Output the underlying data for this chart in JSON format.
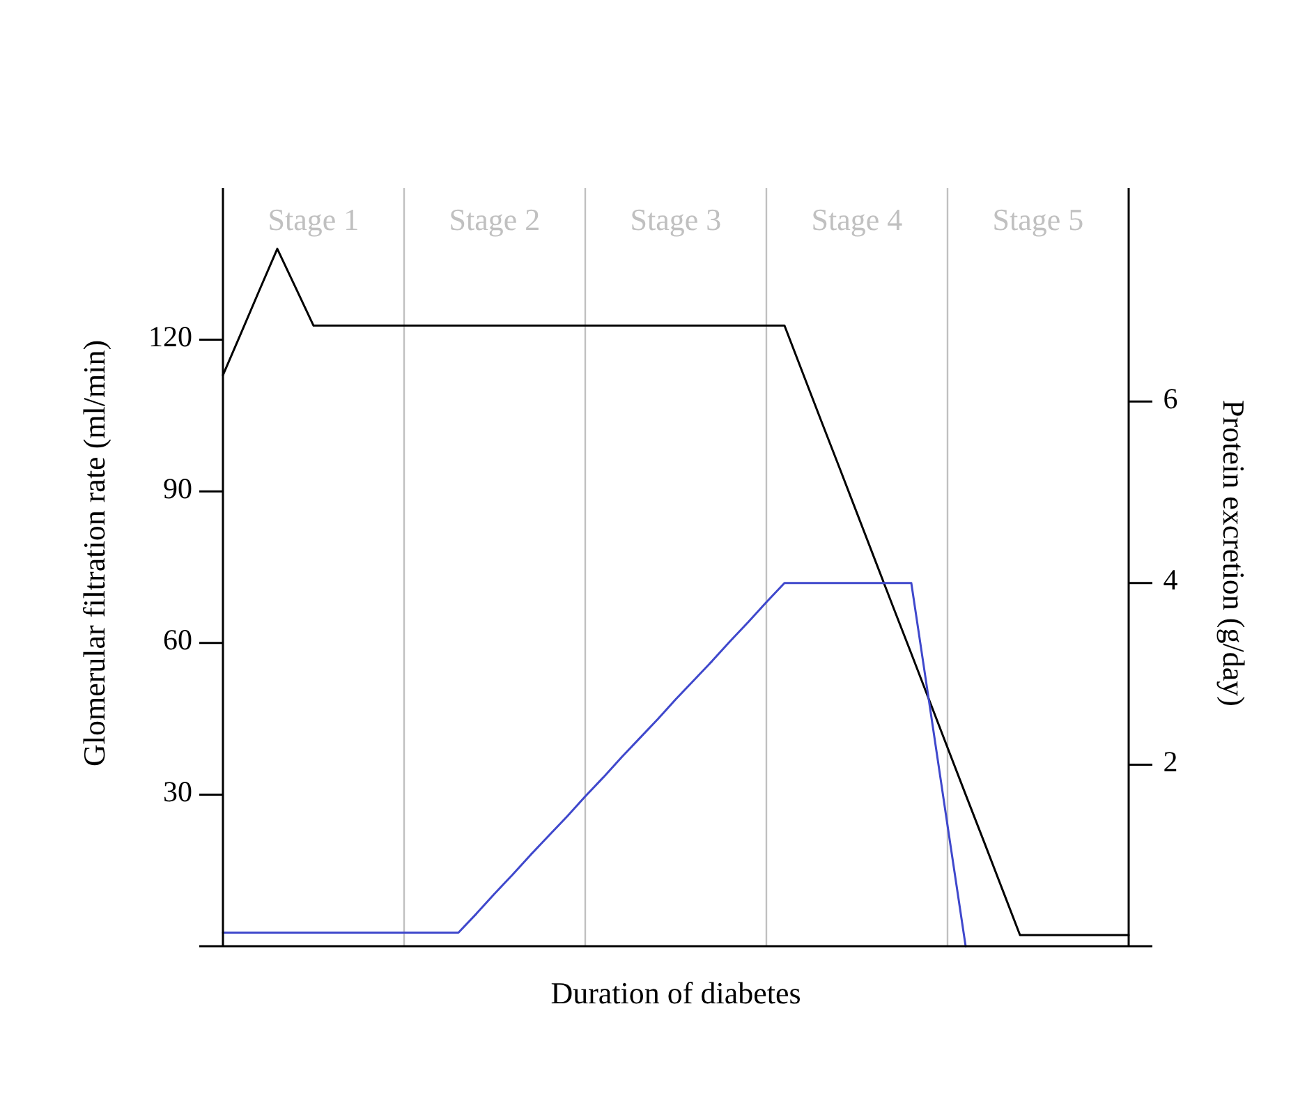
{
  "chart_data": {
    "type": "line",
    "xlabel": "Duration of diabetes",
    "ylabel": "Glomerular filtration rate (ml/min)",
    "y2label": "Protein excretion (g/day)",
    "categories": [
      null,
      null,
      null,
      null,
      null,
      null,
      null,
      null,
      null,
      null,
      null,
      null,
      null,
      null,
      null,
      null,
      null,
      null,
      null,
      null,
      null,
      null,
      null,
      null,
      null,
      null,
      null,
      null,
      null,
      null,
      null,
      null,
      null,
      null,
      null,
      null,
      null,
      null,
      null,
      null,
      null,
      null,
      null,
      null,
      null,
      null,
      null,
      null,
      null,
      null,
      null
    ],
    "ylim": [
      0,
      150
    ],
    "yticks": [
      30,
      60,
      90,
      120
    ],
    "y2lim": [
      0,
      8.35
    ],
    "y2ticks": [
      2,
      4,
      6
    ],
    "line_style": "solid",
    "series": [
      {
        "color": "#000000",
        "values": [
          113,
          121.3,
          129.7,
          138,
          130.4,
          122.8,
          122.8,
          122.8,
          122.8,
          122.8,
          122.8,
          122.8,
          122.8,
          122.8,
          122.8,
          122.8,
          122.8,
          122.8,
          122.8,
          122.8,
          122.8,
          122.8,
          122.8,
          122.8,
          122.8,
          122.8,
          122.8,
          122.8,
          122.8,
          122.8,
          122.8,
          122.8,
          113.5,
          104.2,
          95.0,
          85.7,
          76.4,
          67.1,
          57.9,
          48.6,
          39.3,
          30.0,
          20.8,
          11.5,
          2.2,
          2.2,
          2.2,
          2.2,
          2.2,
          2.2,
          2.2
        ]
      },
      {
        "color": "#3f48cc",
        "axis": "y2",
        "values": [
          0.15,
          0.15,
          0.15,
          0.15,
          0.15,
          0.15,
          0.15,
          0.15,
          0.15,
          0.15,
          0.15,
          0.15,
          0.15,
          0.15,
          0.36,
          0.58,
          0.79,
          1.01,
          1.22,
          1.43,
          1.65,
          1.86,
          2.08,
          2.29,
          2.5,
          2.72,
          2.93,
          3.14,
          3.36,
          3.57,
          3.79,
          4,
          4,
          4,
          4,
          4,
          4,
          4,
          4,
          2.67,
          1.33,
          0,
          null,
          null,
          null,
          null,
          null,
          null,
          null,
          null,
          null
        ]
      }
    ],
    "grid": "x",
    "annotations": [
      "Stage 1",
      "Stage 2",
      "Stage 3",
      "Stage 4",
      "Stage 5"
    ]
  }
}
